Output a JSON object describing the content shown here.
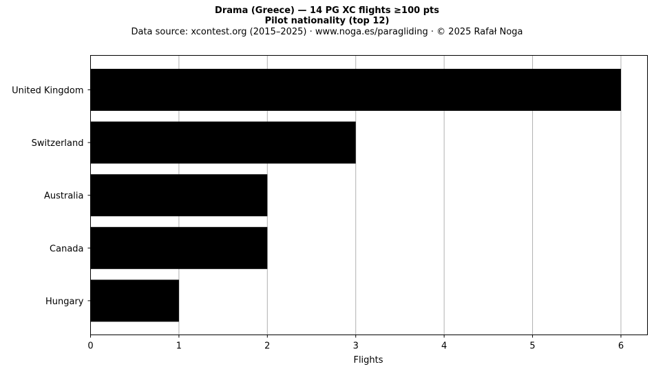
{
  "chart_data": {
    "type": "bar",
    "orientation": "horizontal",
    "title": "Drama (Greece)  —  14 PG XC flights ≥100 pts",
    "subtitle": "Pilot nationality (top 12)",
    "source_line": "Data source: xcontest.org (2015–2025)  ·  www.noga.es/paragliding  ·  © 2025 Rafał Noga",
    "categories": [
      "United Kingdom",
      "Switzerland",
      "Australia",
      "Canada",
      "Hungary"
    ],
    "values": [
      6,
      3,
      2,
      2,
      1
    ],
    "xlabel": "Flights",
    "ylabel": "",
    "xlim": [
      0,
      6.3
    ],
    "xticks": [
      0,
      1,
      2,
      3,
      4,
      5,
      6
    ],
    "grid": "x",
    "bar_color": "#000000",
    "grid_color": "#b0b0b0"
  }
}
